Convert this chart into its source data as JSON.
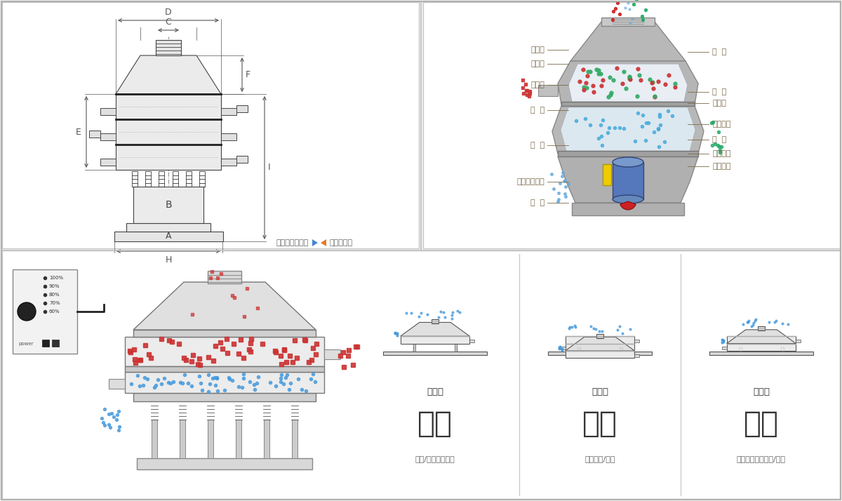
{
  "bg_color": "#f2f2ef",
  "panel_bg": "#ffffff",
  "divider_color": "#cccccc",
  "annotation_color": "#7a6a4a",
  "dim_line_color": "#555555",
  "drawing_color": "#444444",
  "nav_blue": "#4488cc",
  "nav_orange": "#e87722",
  "left_labels": [
    "进料口",
    "防尘盖",
    "出料口",
    "束  环",
    "弹  簧",
    "运输固定螺栓",
    "机  座"
  ],
  "right_labels": [
    "筛  网",
    "网  架",
    "加重块",
    "上部重锤",
    "筛  盘",
    "振动电机",
    "下部重锤"
  ],
  "mode_labels": [
    "单层式",
    "三层式",
    "双层式"
  ],
  "function_labels": [
    "分级",
    "过滤",
    "除杂"
  ],
  "function_descs": [
    "颗粒/绿末准确分级",
    "去除异物/结块",
    "去除液体中的颗粒/异物"
  ],
  "nav_text_left": "外形尺寸示意图",
  "nav_text_right": "结构示意图",
  "dim_labels": [
    "D",
    "C",
    "F",
    "E",
    "B",
    "A",
    "H",
    "I"
  ],
  "control_labels": [
    "100%",
    "90%",
    "80%",
    "70%",
    "60%"
  ],
  "control_label": "power"
}
